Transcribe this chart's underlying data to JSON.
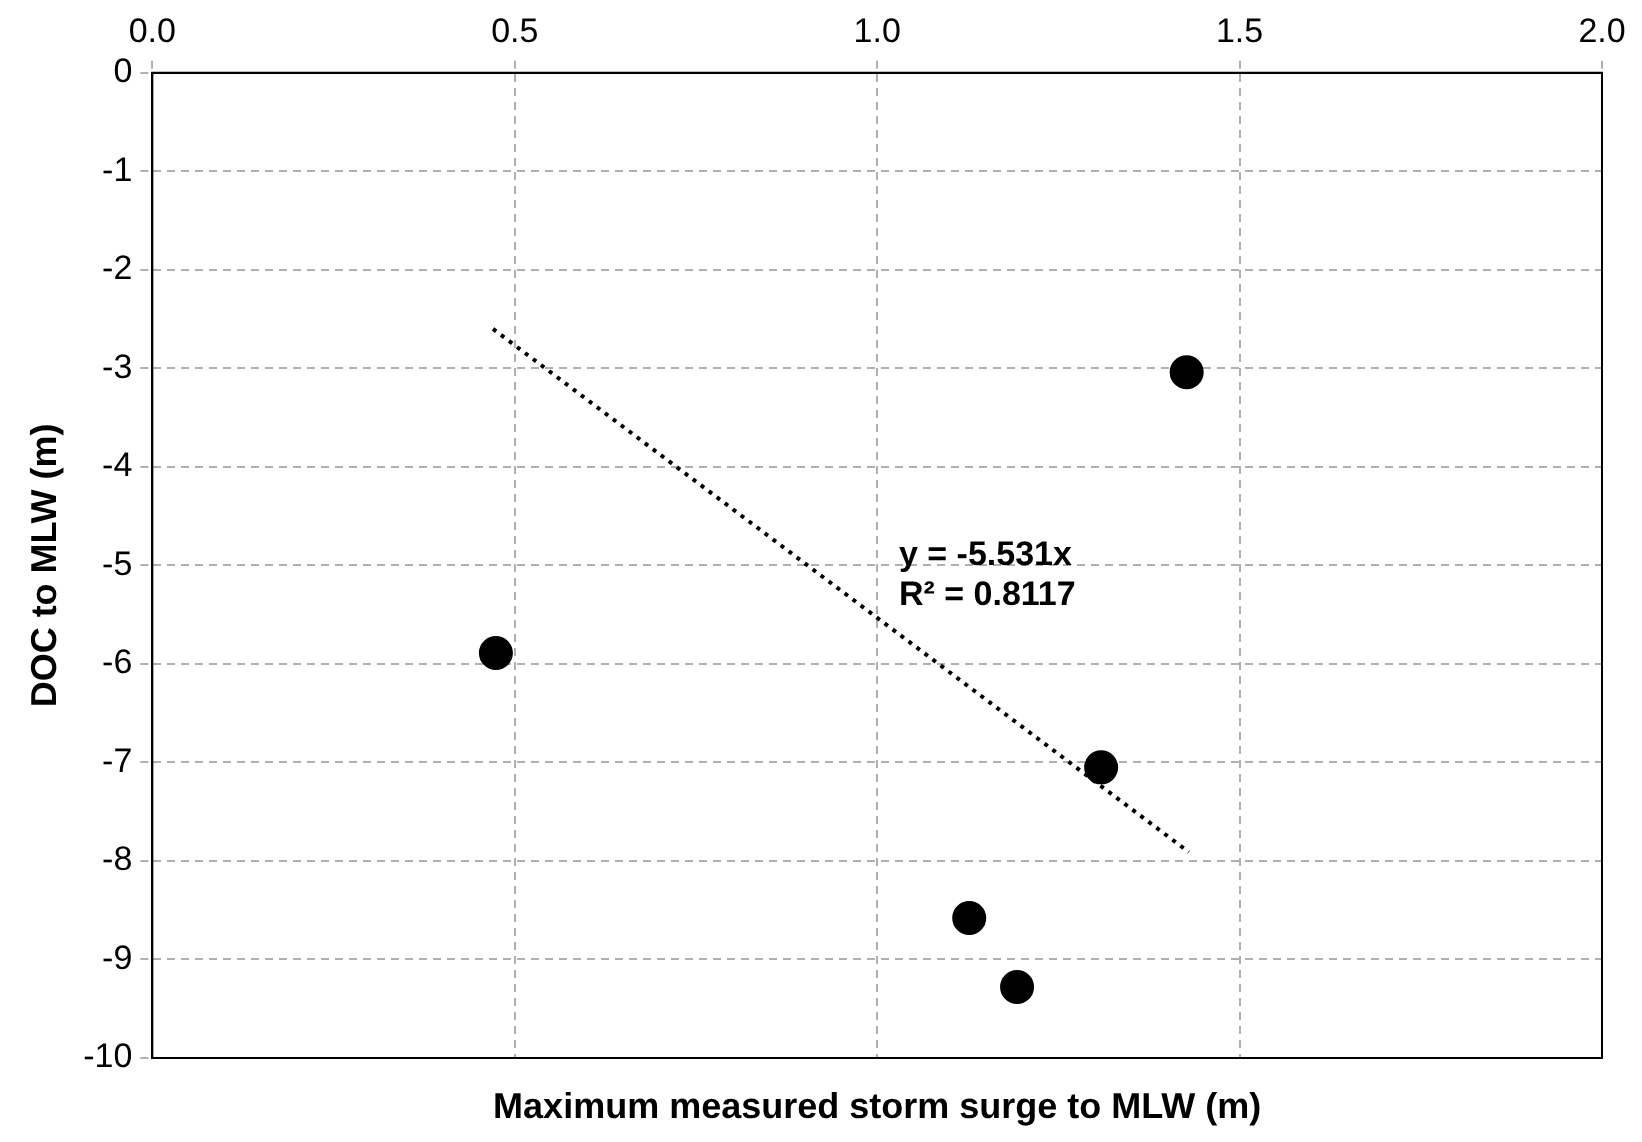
{
  "chart_data": {
    "type": "scatter",
    "xlabel": "Maximum measured storm surge to MLW (m)",
    "ylabel": "DOC to MLW (m)",
    "xlim": [
      0,
      2
    ],
    "xticks": [
      {
        "value": 0,
        "label": "0.0"
      },
      {
        "value": 0.5,
        "label": "0.5"
      },
      {
        "value": 1,
        "label": "1.0"
      },
      {
        "value": 1.5,
        "label": "1.5"
      },
      {
        "value": 2,
        "label": "2.0"
      }
    ],
    "ylim": [
      -10,
      0
    ],
    "yticks": [
      0,
      -1,
      -2,
      -3,
      -4,
      -5,
      -6,
      -7,
      -8,
      -9,
      -10
    ],
    "grid": true,
    "legend": false,
    "marker": "circle",
    "series": [
      {
        "type": "scatter",
        "color": "#000000",
        "x": [
          0.474,
          1.427,
          1.309,
          1.127,
          1.193
        ],
        "values": [
          -5.89,
          -3.04,
          -7.05,
          -8.58,
          -9.28
        ]
      },
      {
        "type": "line",
        "color": "#000000",
        "line_style": "dotted",
        "marker": "none",
        "x": [
          0.47,
          1.43
        ],
        "values": [
          -2.6,
          -7.91
        ]
      }
    ],
    "annotations": [
      "y = -5.531x",
      "R² = 0.8117"
    ]
  }
}
